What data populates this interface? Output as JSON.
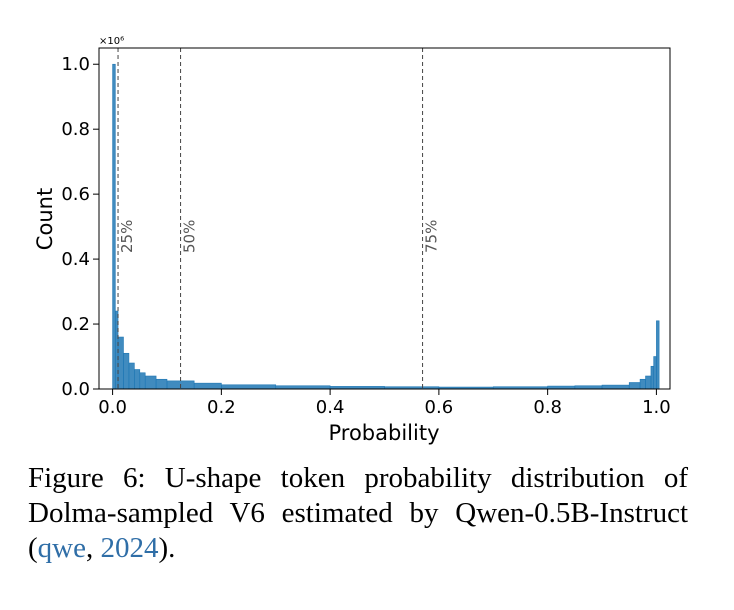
{
  "chart_data": {
    "type": "bar",
    "subtype": "histogram",
    "xlabel": "Probability",
    "ylabel": "Count",
    "y_multiplier_label": "×10⁶",
    "xlim": [
      -0.025,
      1.025
    ],
    "ylim": [
      0,
      1.05
    ],
    "x_ticks": [
      0.0,
      0.2,
      0.4,
      0.6,
      0.8,
      1.0
    ],
    "x_tick_labels": [
      "0.0",
      "0.2",
      "0.4",
      "0.6",
      "0.8",
      "1.0"
    ],
    "y_ticks": [
      0.0,
      0.2,
      0.4,
      0.6,
      0.8,
      1.0
    ],
    "y_tick_labels": [
      "0.0",
      "0.2",
      "0.4",
      "0.6",
      "0.8",
      "1.0"
    ],
    "bar_color": "#1f77b4",
    "grid": false,
    "series": [
      {
        "x": [
          0.0,
          0.005,
          0.01,
          0.02,
          0.03,
          0.04,
          0.05,
          0.06,
          0.08,
          0.1,
          0.15,
          0.2,
          0.3,
          0.4,
          0.5,
          0.6,
          0.7,
          0.8,
          0.85,
          0.9,
          0.95,
          0.97,
          0.98,
          0.99,
          0.995,
          1.0
        ],
        "values": [
          1.0,
          0.24,
          0.16,
          0.11,
          0.08,
          0.06,
          0.05,
          0.04,
          0.03,
          0.025,
          0.018,
          0.013,
          0.01,
          0.008,
          0.007,
          0.006,
          0.007,
          0.009,
          0.01,
          0.012,
          0.02,
          0.03,
          0.04,
          0.07,
          0.1,
          0.21
        ]
      }
    ],
    "quantile_lines": [
      {
        "label": "25%",
        "x": 0.01
      },
      {
        "label": "50%",
        "x": 0.125
      },
      {
        "label": "75%",
        "x": 0.57
      }
    ]
  },
  "caption": {
    "text": "Figure 6: U-shape token probability distribution of Dolma-sampled V6 estimated by Qwen-0.5B-Instruct (",
    "cite_name": "qwe",
    "cite_sep": ", ",
    "cite_year": "2024",
    "tail": ")."
  }
}
